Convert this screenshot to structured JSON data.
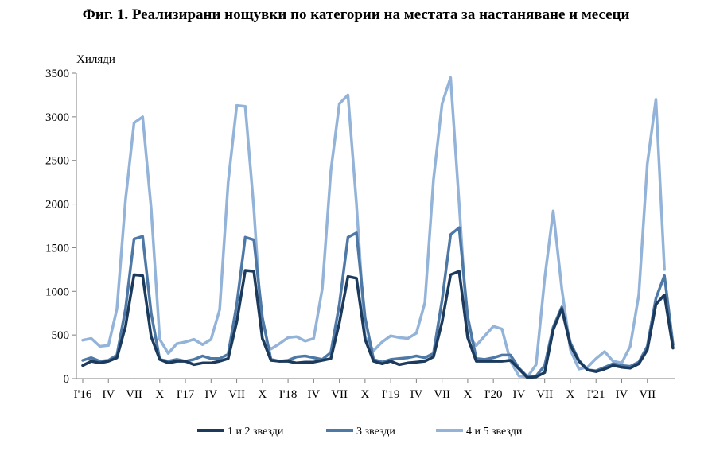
{
  "chart_data": {
    "type": "line",
    "title": "Фиг. 1. Реализирани нощувки по категории на местата за настаняване и месеци",
    "ylabel": "Хиляди",
    "xlabel": "",
    "ylim": [
      0,
      3500
    ],
    "yticks": [
      0,
      500,
      1000,
      1500,
      2000,
      2500,
      3000,
      3500
    ],
    "grid": false,
    "legend_position": "bottom",
    "x_tick_labels": [
      {
        "index": 0,
        "label": "I'16"
      },
      {
        "index": 3,
        "label": "IV"
      },
      {
        "index": 6,
        "label": "VII"
      },
      {
        "index": 9,
        "label": "X"
      },
      {
        "index": 12,
        "label": "I'17"
      },
      {
        "index": 15,
        "label": "IV"
      },
      {
        "index": 18,
        "label": "VII"
      },
      {
        "index": 21,
        "label": "X"
      },
      {
        "index": 24,
        "label": "I'18"
      },
      {
        "index": 27,
        "label": "IV"
      },
      {
        "index": 30,
        "label": "VII"
      },
      {
        "index": 33,
        "label": "X"
      },
      {
        "index": 36,
        "label": "I'19"
      },
      {
        "index": 39,
        "label": "IV"
      },
      {
        "index": 42,
        "label": "VII"
      },
      {
        "index": 45,
        "label": "X"
      },
      {
        "index": 48,
        "label": "I'20"
      },
      {
        "index": 51,
        "label": "IV"
      },
      {
        "index": 54,
        "label": "VII"
      },
      {
        "index": 57,
        "label": "X"
      },
      {
        "index": 60,
        "label": "I'21"
      },
      {
        "index": 63,
        "label": "IV"
      },
      {
        "index": 66,
        "label": "VII"
      }
    ],
    "series": [
      {
        "name": "1 и 2 звезди",
        "color": "#1b3a5c",
        "values": [
          150,
          200,
          180,
          200,
          240,
          600,
          1190,
          1180,
          480,
          220,
          180,
          200,
          200,
          160,
          180,
          180,
          200,
          230,
          650,
          1240,
          1230,
          460,
          210,
          200,
          200,
          180,
          190,
          190,
          210,
          230,
          640,
          1170,
          1150,
          450,
          200,
          170,
          200,
          160,
          180,
          190,
          200,
          250,
          650,
          1190,
          1230,
          470,
          200,
          200,
          200,
          200,
          210,
          110,
          10,
          20,
          70,
          560,
          800,
          380,
          200,
          100,
          80,
          110,
          150,
          130,
          120,
          170,
          330,
          850,
          960,
          350
        ]
      },
      {
        "name": "3 звезди",
        "color": "#4e79a7",
        "values": [
          210,
          240,
          200,
          210,
          270,
          800,
          1600,
          1630,
          750,
          220,
          200,
          220,
          200,
          220,
          260,
          230,
          230,
          280,
          850,
          1620,
          1590,
          700,
          220,
          200,
          210,
          250,
          260,
          240,
          220,
          300,
          850,
          1620,
          1670,
          700,
          220,
          190,
          220,
          230,
          240,
          260,
          240,
          290,
          900,
          1650,
          1730,
          710,
          230,
          220,
          240,
          270,
          270,
          120,
          20,
          30,
          150,
          590,
          820,
          410,
          210,
          100,
          90,
          130,
          170,
          150,
          140,
          190,
          370,
          920,
          1180,
          390
        ]
      },
      {
        "name": "4 и 5 звезди",
        "color": "#93b3d8",
        "values": [
          440,
          460,
          370,
          380,
          800,
          2050,
          2930,
          3000,
          1950,
          450,
          290,
          400,
          420,
          450,
          390,
          450,
          790,
          2250,
          3130,
          3120,
          1950,
          450,
          340,
          400,
          470,
          480,
          430,
          460,
          1030,
          2380,
          3150,
          3250,
          2000,
          480,
          320,
          420,
          490,
          470,
          460,
          520,
          870,
          2280,
          3150,
          3450,
          2000,
          490,
          380,
          490,
          600,
          570,
          200,
          30,
          20,
          160,
          1150,
          1920,
          1030,
          330,
          110,
          130,
          230,
          310,
          200,
          180,
          370,
          960,
          2460,
          3200,
          1250
        ]
      }
    ]
  }
}
